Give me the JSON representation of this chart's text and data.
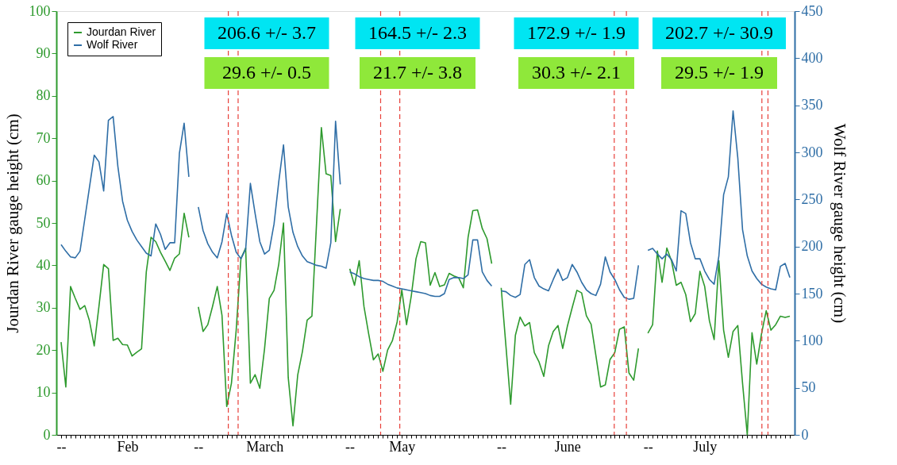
{
  "chart_data": {
    "type": "line",
    "ylabel": "Jourdan River gauge height (cm)",
    "y2label": "Wolf River gauge height (cm)",
    "categories": [
      "--",
      null,
      null,
      null,
      null,
      null,
      null,
      null,
      null,
      null,
      null,
      null,
      null,
      null,
      "Feb",
      null,
      null,
      null,
      null,
      null,
      null,
      null,
      null,
      null,
      null,
      null,
      null,
      null,
      null,
      "--",
      null,
      null,
      null,
      null,
      null,
      null,
      null,
      null,
      null,
      null,
      null,
      null,
      null,
      "March",
      null,
      null,
      null,
      null,
      null,
      null,
      null,
      null,
      null,
      null,
      null,
      null,
      null,
      null,
      null,
      null,
      null,
      "--",
      null,
      null,
      null,
      null,
      null,
      null,
      null,
      null,
      null,
      null,
      "May",
      null,
      null,
      null,
      null,
      null,
      null,
      null,
      null,
      null,
      null,
      null,
      null,
      null,
      null,
      null,
      null,
      null,
      null,
      null,
      null,
      "--",
      null,
      null,
      null,
      null,
      null,
      null,
      null,
      null,
      null,
      null,
      null,
      null,
      null,
      "June",
      null,
      null,
      null,
      null,
      null,
      null,
      null,
      null,
      null,
      null,
      null,
      null,
      null,
      null,
      null,
      null,
      "--",
      null,
      null,
      null,
      null,
      null,
      null,
      null,
      null,
      null,
      null,
      null,
      "July",
      null,
      null,
      null,
      null,
      null,
      null,
      null,
      null,
      null,
      null,
      null,
      null,
      null,
      null,
      null,
      null,
      null,
      null
    ],
    "ylim": [
      0,
      100
    ],
    "yticks": [
      0,
      10,
      20,
      30,
      40,
      50,
      60,
      70,
      80,
      90,
      100
    ],
    "y2lim": [
      0,
      450
    ],
    "y2ticks": [
      0,
      50,
      100,
      150,
      200,
      250,
      300,
      350,
      400,
      450
    ],
    "grid": false,
    "legend": "top left",
    "line_style": "solid",
    "series": [
      {
        "name": "Jourdan River",
        "color": "#2e9a2e",
        "axis": "y",
        "values": [
          21.9,
          11.3,
          35.0,
          32.2,
          29.6,
          30.5,
          26.9,
          21.0,
          30.3,
          40.2,
          39.2,
          22.3,
          22.8,
          21.3,
          21.2,
          18.6,
          19.5,
          20.3,
          38.4,
          46.6,
          45.6,
          43.1,
          41.0,
          38.8,
          41.7,
          42.7,
          52.3,
          46.6,
          null,
          30.2,
          24.4,
          26.0,
          30.3,
          35.0,
          28.2,
          6.7,
          12.2,
          24.7,
          41.6,
          44.1,
          12.2,
          14.2,
          11.0,
          20.4,
          32.2,
          34.1,
          40.3,
          50.0,
          13.5,
          2.1,
          14.1,
          19.7,
          27.1,
          28.0,
          50.3,
          72.5,
          61.6,
          61.2,
          45.6,
          53.3,
          null,
          39.2,
          35.3,
          41.1,
          30.3,
          23.8,
          17.7,
          19.1,
          15.0,
          20.0,
          22.2,
          26.6,
          34.2,
          26.0,
          32.8,
          41.6,
          45.6,
          45.3,
          35.3,
          38.3,
          35.0,
          35.4,
          38.1,
          37.5,
          37.1,
          34.7,
          46.6,
          52.9,
          53.1,
          48.7,
          46.3,
          40.4,
          null,
          34.7,
          21.0,
          7.2,
          23.5,
          27.8,
          25.7,
          26.5,
          19.4,
          17.2,
          13.8,
          21.0,
          24.4,
          25.8,
          20.4,
          25.7,
          30.0,
          34.1,
          33.5,
          28.1,
          26.1,
          18.8,
          11.3,
          11.8,
          17.8,
          19.4,
          24.9,
          25.5,
          14.6,
          12.9,
          20.4,
          null,
          24.0,
          26.0,
          43.4,
          36.0,
          44.1,
          41.0,
          35.3,
          36.0,
          33.1,
          26.7,
          28.6,
          38.6,
          35.0,
          26.9,
          22.5,
          41.1,
          24.7,
          18.3,
          24.4,
          25.8,
          12.2,
          0,
          24.1,
          16.7,
          23.8,
          29.3,
          24.7,
          26.0,
          28.0,
          27.7,
          28.0
        ]
      },
      {
        "name": "Wolf River",
        "color": "#2f6ea6",
        "axis": "y2",
        "values": [
          202,
          195,
          189,
          188,
          195,
          229,
          263,
          297,
          290,
          259,
          334,
          338,
          285,
          248,
          228,
          216,
          207,
          200,
          193,
          190,
          224,
          213,
          197,
          204,
          204,
          299,
          331,
          274,
          null,
          242,
          217,
          203,
          194,
          188,
          205,
          235,
          212,
          194,
          187,
          197,
          267,
          235,
          205,
          192,
          196,
          224,
          269,
          308,
          242,
          215,
          200,
          190,
          184,
          182,
          180,
          179,
          177,
          204,
          333,
          266,
          null,
          173,
          171,
          168,
          166,
          165,
          164,
          164,
          163,
          160,
          158,
          156,
          155,
          154,
          153,
          152,
          151,
          150,
          148,
          147,
          147,
          150,
          165,
          167,
          167,
          166,
          170,
          207,
          207,
          173,
          164,
          158,
          null,
          153,
          152,
          148,
          146,
          149,
          181,
          186,
          167,
          158,
          155,
          153,
          165,
          176,
          164,
          167,
          181,
          173,
          162,
          154,
          150,
          148,
          160,
          189,
          173,
          165,
          154,
          146,
          144,
          145,
          180,
          null,
          196,
          198,
          192,
          187,
          192,
          186,
          174,
          238,
          235,
          204,
          187,
          187,
          174,
          165,
          160,
          190,
          255,
          274,
          344,
          294,
          218,
          190,
          174,
          166,
          160,
          157,
          155,
          154,
          179,
          182,
          167
        ]
      }
    ],
    "annotations": [
      "206.6 +/- 3.7",
      "29.6 +/-  0.5",
      "164.5 +/- 2.3",
      "21.7 +/- 3.8",
      "172.9 +/- 1.9",
      "30.3 +/- 2.1",
      "202.7 +/- 30.9",
      "29.5 +/- 1.9"
    ]
  }
}
